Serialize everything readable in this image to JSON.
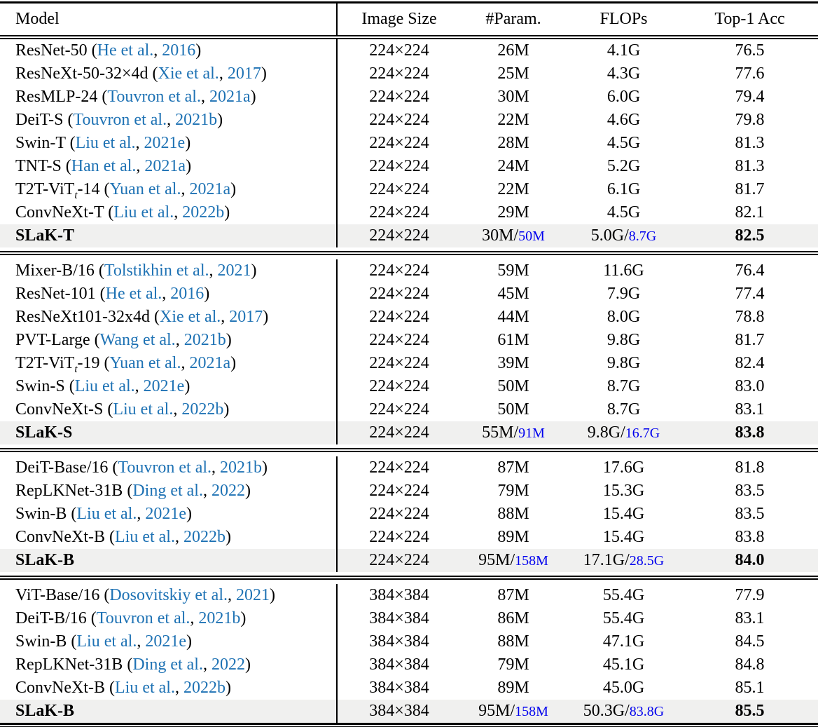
{
  "table": {
    "columns": [
      "Model",
      "Image Size",
      "#Param.",
      "FLOPs",
      "Top-1 Acc"
    ],
    "colors": {
      "citation_link": "#1e72b4",
      "sparse_extra_value": "#0000ee",
      "highlight_row_bg": "#f0f0ef",
      "text": "#000000",
      "rule": "#000000"
    },
    "groups": [
      {
        "rows": [
          {
            "model": "ResNet-50",
            "authors": "He et al.",
            "year": "2016",
            "image_size": "224×224",
            "params": "26M",
            "flops": "4.1G",
            "acc": "76.5"
          },
          {
            "model": "ResNeXt-50-32×4d",
            "authors": "Xie et al.",
            "year": "2017",
            "image_size": "224×224",
            "params": "25M",
            "flops": "4.3G",
            "acc": "77.6"
          },
          {
            "model": "ResMLP-24",
            "authors": "Touvron et al.",
            "year": "2021a",
            "image_size": "224×224",
            "params": "30M",
            "flops": "6.0G",
            "acc": "79.4"
          },
          {
            "model": "DeiT-S",
            "authors": "Touvron et al.",
            "year": "2021b",
            "image_size": "224×224",
            "params": "22M",
            "flops": "4.6G",
            "acc": "79.8"
          },
          {
            "model": "Swin-T",
            "authors": "Liu et al.",
            "year": "2021e",
            "image_size": "224×224",
            "params": "28M",
            "flops": "4.5G",
            "acc": "81.3"
          },
          {
            "model": "TNT-S",
            "authors": "Han et al.",
            "year": "2021a",
            "image_size": "224×224",
            "params": "24M",
            "flops": "5.2G",
            "acc": "81.3"
          },
          {
            "model": "T2T-ViT",
            "model_sub": "t",
            "model_suffix": "-14",
            "authors": "Yuan et al.",
            "year": "2021a",
            "image_size": "224×224",
            "params": "22M",
            "flops": "6.1G",
            "acc": "81.7"
          },
          {
            "model": "ConvNeXt-T",
            "authors": "Liu et al.",
            "year": "2022b",
            "image_size": "224×224",
            "params": "29M",
            "flops": "4.5G",
            "acc": "82.1"
          },
          {
            "model": "SLaK-T",
            "highlight": true,
            "image_size": "224×224",
            "params": "30M",
            "params_extra": "50M",
            "flops": "5.0G",
            "flops_extra": "8.7G",
            "acc": "82.5"
          }
        ]
      },
      {
        "rows": [
          {
            "model": "Mixer-B/16",
            "authors": "Tolstikhin et al.",
            "year": "2021",
            "image_size": "224×224",
            "params": "59M",
            "flops": "11.6G",
            "acc": "76.4"
          },
          {
            "model": "ResNet-101",
            "authors": "He et al.",
            "year": "2016",
            "image_size": "224×224",
            "params": "45M",
            "flops": "7.9G",
            "acc": "77.4"
          },
          {
            "model": "ResNeXt101-32x4d",
            "authors": "Xie et al.",
            "year": "2017",
            "image_size": "224×224",
            "params": "44M",
            "flops": "8.0G",
            "acc": "78.8"
          },
          {
            "model": "PVT-Large",
            "authors": "Wang et al.",
            "year": "2021b",
            "image_size": "224×224",
            "params": "61M",
            "flops": "9.8G",
            "acc": "81.7"
          },
          {
            "model": "T2T-ViT",
            "model_sub": "t",
            "model_suffix": "-19",
            "authors": "Yuan et al.",
            "year": "2021a",
            "image_size": "224×224",
            "params": "39M",
            "flops": "9.8G",
            "acc": "82.4"
          },
          {
            "model": "Swin-S",
            "authors": "Liu et al.",
            "year": "2021e",
            "image_size": "224×224",
            "params": "50M",
            "flops": "8.7G",
            "acc": "83.0"
          },
          {
            "model": "ConvNeXt-S",
            "authors": "Liu et al.",
            "year": "2022b",
            "image_size": "224×224",
            "params": "50M",
            "flops": "8.7G",
            "acc": "83.1"
          },
          {
            "model": "SLaK-S",
            "highlight": true,
            "image_size": "224×224",
            "params": "55M",
            "params_extra": "91M",
            "flops": "9.8G",
            "flops_extra": "16.7G",
            "acc": "83.8"
          }
        ]
      },
      {
        "rows": [
          {
            "model": "DeiT-Base/16",
            "authors": "Touvron et al.",
            "year": "2021b",
            "image_size": "224×224",
            "params": "87M",
            "flops": "17.6G",
            "acc": "81.8"
          },
          {
            "model": "RepLKNet-31B",
            "authors": "Ding et al.",
            "year": "2022",
            "image_size": "224×224",
            "params": "79M",
            "flops": "15.3G",
            "acc": "83.5"
          },
          {
            "model": "Swin-B",
            "authors": "Liu et al.",
            "year": "2021e",
            "image_size": "224×224",
            "params": "88M",
            "flops": "15.4G",
            "acc": "83.5"
          },
          {
            "model": "ConvNeXt-B",
            "authors": "Liu et al.",
            "year": "2022b",
            "image_size": "224×224",
            "params": "89M",
            "flops": "15.4G",
            "acc": "83.8"
          },
          {
            "model": "SLaK-B",
            "highlight": true,
            "image_size": "224×224",
            "params": "95M",
            "params_extra": "158M",
            "flops": "17.1G",
            "flops_extra": "28.5G",
            "acc": "84.0"
          }
        ]
      },
      {
        "rows": [
          {
            "model": "ViT-Base/16",
            "authors": "Dosovitskiy et al.",
            "year": "2021",
            "image_size": "384×384",
            "params": "87M",
            "flops": "55.4G",
            "acc": "77.9"
          },
          {
            "model": "DeiT-B/16",
            "authors": "Touvron et al.",
            "year": "2021b",
            "image_size": "384×384",
            "params": "86M",
            "flops": "55.4G",
            "acc": "83.1"
          },
          {
            "model": "Swin-B",
            "authors": "Liu et al.",
            "year": "2021e",
            "image_size": "384×384",
            "params": "88M",
            "flops": "47.1G",
            "acc": "84.5"
          },
          {
            "model": "RepLKNet-31B",
            "authors": "Ding et al.",
            "year": "2022",
            "image_size": "384×384",
            "params": "79M",
            "flops": "45.1G",
            "acc": "84.8"
          },
          {
            "model": "ConvNeXt-B",
            "authors": "Liu et al.",
            "year": "2022b",
            "image_size": "384×384",
            "params": "89M",
            "flops": "45.0G",
            "acc": "85.1"
          },
          {
            "model": "SLaK-B",
            "highlight": true,
            "image_size": "384×384",
            "params": "95M",
            "params_extra": "158M",
            "flops": "50.3G",
            "flops_extra": "83.8G",
            "acc": "85.5"
          }
        ]
      }
    ],
    "punctuation": {
      "cite_open": " (",
      "cite_comma": ", ",
      "cite_close": ")",
      "value_slash": "/"
    }
  }
}
